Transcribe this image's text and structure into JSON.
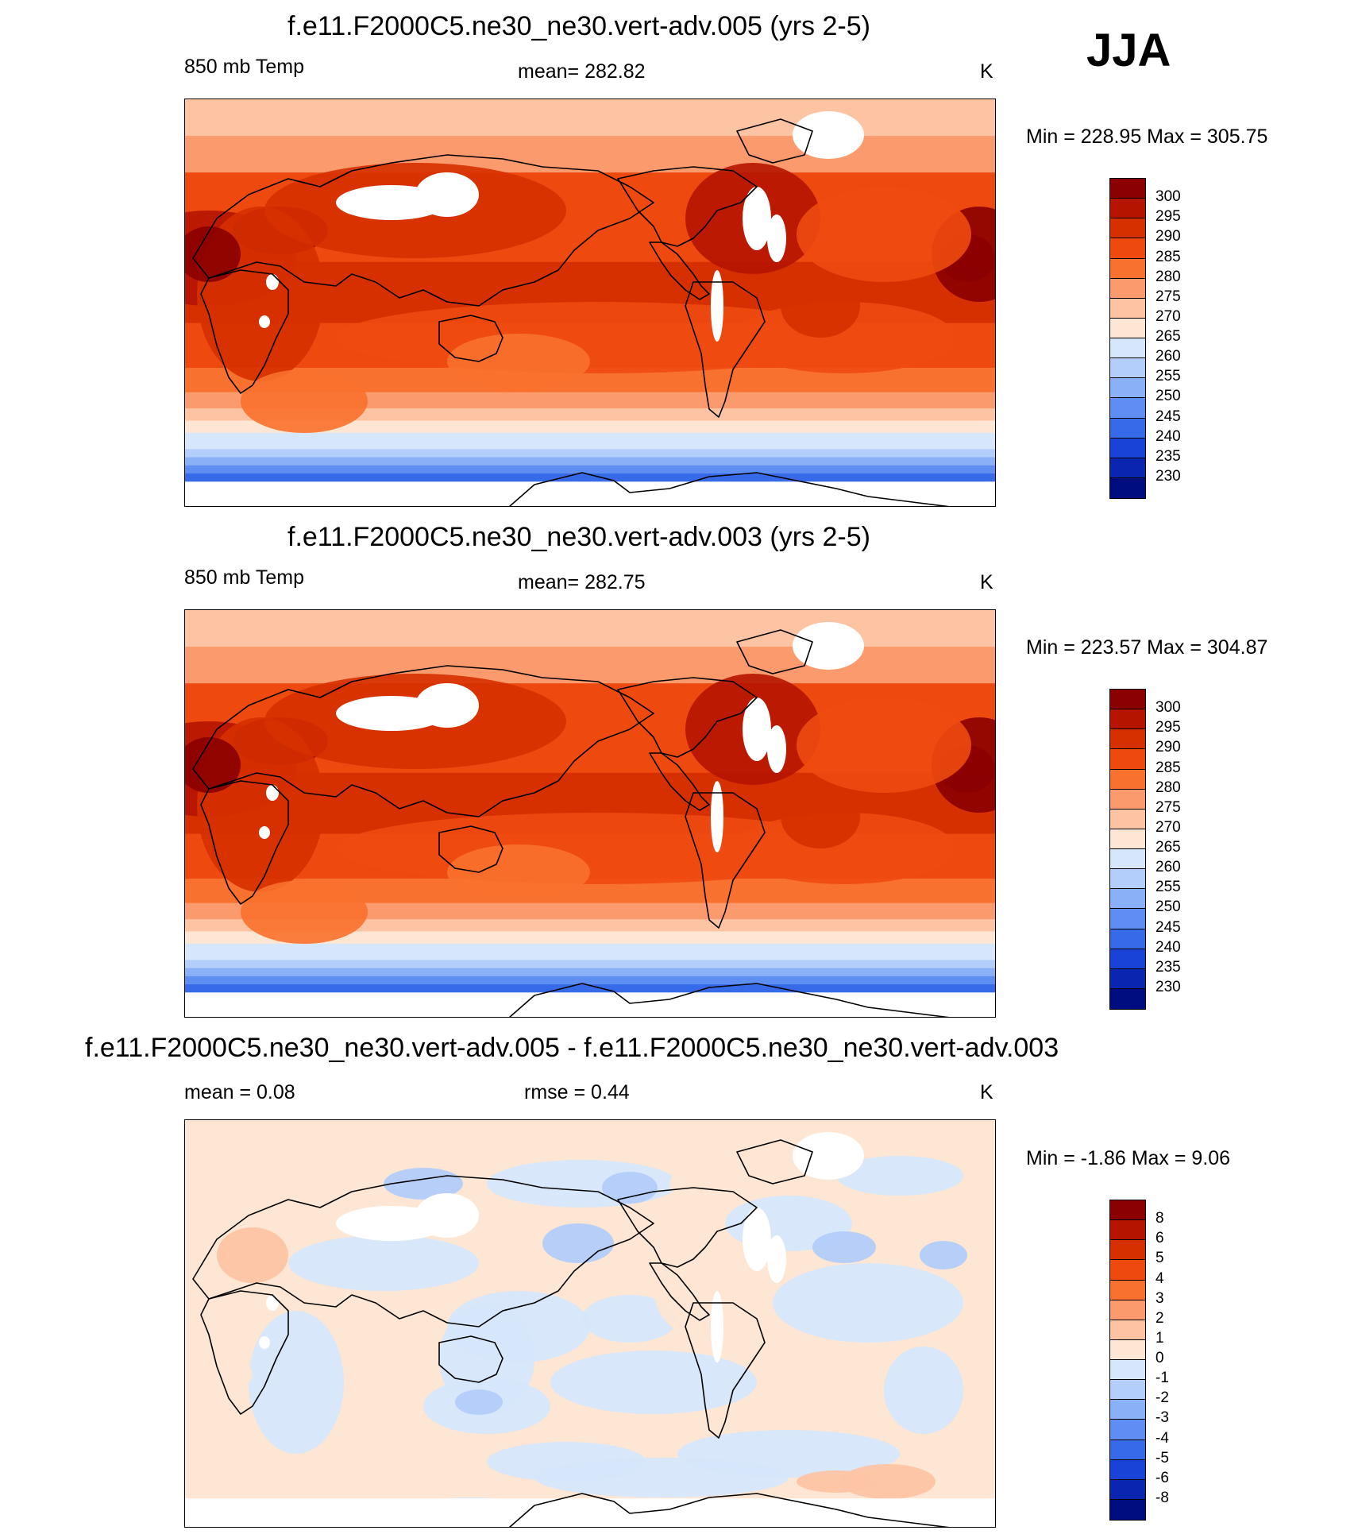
{
  "season": "JJA",
  "panels": [
    {
      "title": "f.e11.F2000C5.ne30_ne30.vert-adv.005 (yrs 2-5)",
      "left_label": "850 mb Temp",
      "center_label": "mean= 282.82",
      "units": "K",
      "minmax": "Min = 228.95 Max = 305.75",
      "kind": "abs"
    },
    {
      "title": "f.e11.F2000C5.ne30_ne30.vert-adv.003 (yrs 2-5)",
      "left_label": "850 mb Temp",
      "center_label": "mean= 282.75",
      "units": "K",
      "minmax": "Min = 223.57 Max = 304.87",
      "kind": "abs2"
    },
    {
      "title": "f.e11.F2000C5.ne30_ne30.vert-adv.005 - f.e11.F2000C5.ne30_ne30.vert-adv.003",
      "left_label": "mean =   0.08",
      "center_label": "rmse =   0.44",
      "units": "K",
      "minmax": "Min =  -1.86 Max =   9.06",
      "kind": "diff"
    }
  ],
  "chart_data": [
    {
      "type": "heatmap",
      "title": "f.e11.F2000C5.ne30_ne30.vert-adv.005 (yrs 2-5)",
      "variable": "850 mb Temp",
      "units": "K",
      "mean": 282.82,
      "min": 228.95,
      "max": 305.75,
      "levels": [
        300,
        295,
        290,
        285,
        280,
        275,
        270,
        265,
        260,
        255,
        250,
        245,
        240,
        235,
        230
      ],
      "colors": [
        "#8b0000",
        "#b51400",
        "#d63000",
        "#ee4a10",
        "#f9712e",
        "#fb9a6c",
        "#fdc4a4",
        "#fde6d4",
        "#d6e7fb",
        "#b3cefa",
        "#8ab0f7",
        "#5f8ef2",
        "#376ae8",
        "#1843d6",
        "#0a26b0",
        "#000d80"
      ]
    },
    {
      "type": "heatmap",
      "title": "f.e11.F2000C5.ne30_ne30.vert-adv.003 (yrs 2-5)",
      "variable": "850 mb Temp",
      "units": "K",
      "mean": 282.75,
      "min": 223.57,
      "max": 304.87,
      "levels": [
        300,
        295,
        290,
        285,
        280,
        275,
        270,
        265,
        260,
        255,
        250,
        245,
        240,
        235,
        230
      ],
      "colors": [
        "#8b0000",
        "#b51400",
        "#d63000",
        "#ee4a10",
        "#f9712e",
        "#fb9a6c",
        "#fdc4a4",
        "#fde6d4",
        "#d6e7fb",
        "#b3cefa",
        "#8ab0f7",
        "#5f8ef2",
        "#376ae8",
        "#1843d6",
        "#0a26b0",
        "#000d80"
      ]
    },
    {
      "type": "heatmap",
      "title": "f.e11.F2000C5.ne30_ne30.vert-adv.005 - f.e11.F2000C5.ne30_ne30.vert-adv.003",
      "units": "K",
      "mean": 0.08,
      "rmse": 0.44,
      "min": -1.86,
      "max": 9.06,
      "levels": [
        8,
        6,
        5,
        4,
        3,
        2,
        1,
        0,
        -1,
        -2,
        -3,
        -4,
        -5,
        -6,
        -8
      ],
      "colors": [
        "#8b0000",
        "#b51400",
        "#d63000",
        "#ee4a10",
        "#f9712e",
        "#fb9a6c",
        "#fdc4a4",
        "#fde6d4",
        "#d6e7fb",
        "#b3cefa",
        "#8ab0f7",
        "#5f8ef2",
        "#376ae8",
        "#1843d6",
        "#0a26b0",
        "#000d80"
      ]
    }
  ]
}
